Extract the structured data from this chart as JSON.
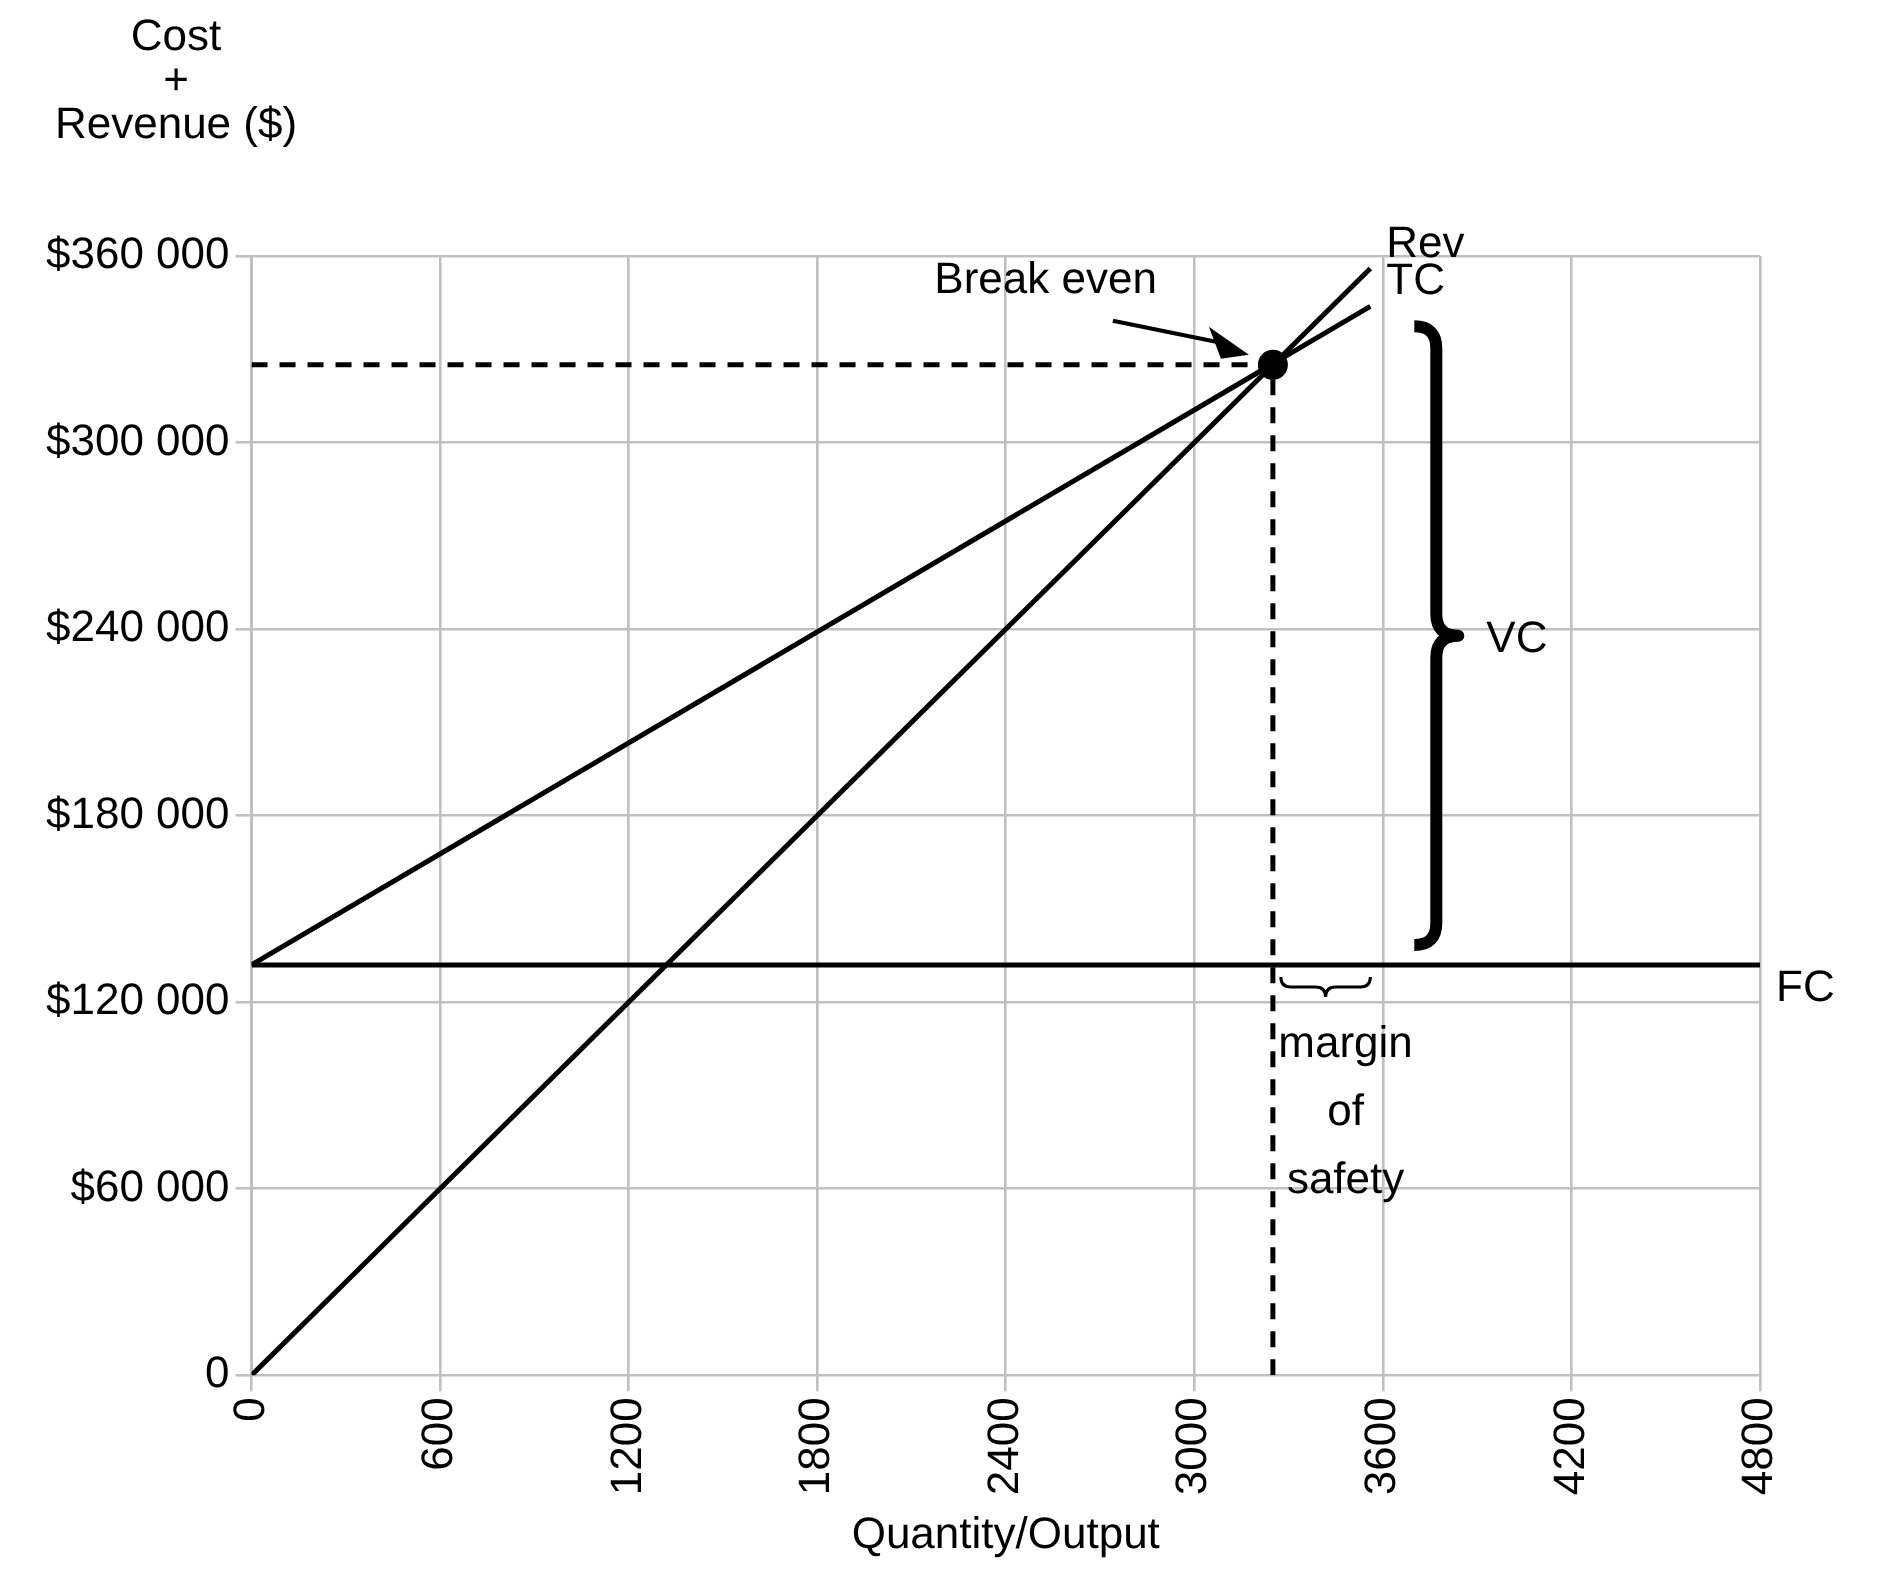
{
  "chart_data": {
    "type": "line",
    "xlabel": "Quantity/Output",
    "ylabel": "Cost\n+\nRevenue ($)",
    "xlim": [
      0,
      4800
    ],
    "xticks": [
      0,
      600,
      1200,
      1800,
      2400,
      3000,
      3600,
      4200,
      4800
    ],
    "ylim": [
      0,
      360000
    ],
    "yticks": [
      {
        "value": 0,
        "label": "0"
      },
      {
        "value": 60000,
        "label": "$60 000"
      },
      {
        "value": 120000,
        "label": "$120 000"
      },
      {
        "value": 180000,
        "label": "$180 000"
      },
      {
        "value": 240000,
        "label": "$240 000"
      },
      {
        "value": 300000,
        "label": "$300 000"
      },
      {
        "value": 360000,
        "label": "$360 000"
      }
    ],
    "grid": true,
    "legend": false,
    "marker": "none",
    "series": [
      {
        "name": "Rev",
        "color": "#000000",
        "x": [
          0,
          3560
        ],
        "values": [
          0,
          356000
        ]
      },
      {
        "name": "TC",
        "color": "#000000",
        "x": [
          0,
          3560
        ],
        "values": [
          132000,
          343800
        ]
      },
      {
        "name": "FC",
        "color": "#000000",
        "x": [
          0,
          4800
        ],
        "values": [
          132000,
          132000
        ]
      },
      {
        "type": "scatter",
        "color": "#000000",
        "marker": "circle",
        "x": [
          3250
        ],
        "values": [
          325000
        ]
      },
      {
        "color": "#000000",
        "line_style": "dashed",
        "x": [
          0,
          3250
        ],
        "values": [
          325000,
          325000
        ]
      },
      {
        "color": "#000000",
        "line_style": "dashed",
        "x": [
          3250,
          3250
        ],
        "values": [
          0,
          325000
        ]
      }
    ],
    "annotations": [
      {
        "text": "Break even",
        "x": 3250,
        "y": 325000
      },
      "VC",
      "margin of safety"
    ]
  }
}
